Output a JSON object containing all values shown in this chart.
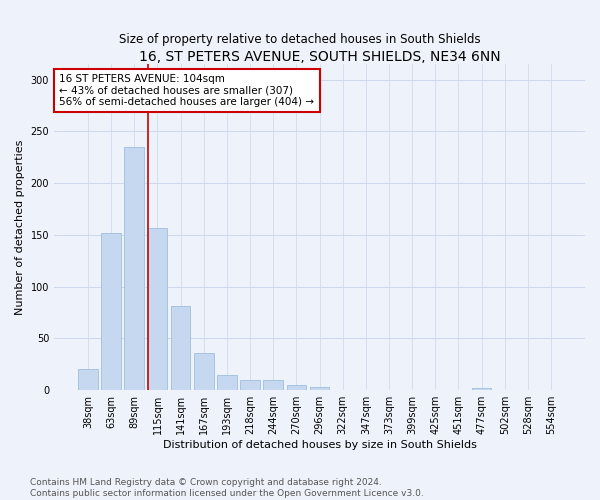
{
  "title": "16, ST PETERS AVENUE, SOUTH SHIELDS, NE34 6NN",
  "subtitle": "Size of property relative to detached houses in South Shields",
  "xlabel": "Distribution of detached houses by size in South Shields",
  "ylabel": "Number of detached properties",
  "bar_color": "#c5d8f0",
  "bar_edge_color": "#a0bedd",
  "background_color": "#eef2fa",
  "categories": [
    "38sqm",
    "63sqm",
    "89sqm",
    "115sqm",
    "141sqm",
    "167sqm",
    "193sqm",
    "218sqm",
    "244sqm",
    "270sqm",
    "296sqm",
    "322sqm",
    "347sqm",
    "373sqm",
    "399sqm",
    "425sqm",
    "451sqm",
    "477sqm",
    "502sqm",
    "528sqm",
    "554sqm"
  ],
  "values": [
    20,
    152,
    235,
    157,
    81,
    36,
    15,
    10,
    10,
    5,
    3,
    0,
    0,
    0,
    0,
    0,
    0,
    2,
    0,
    0,
    0
  ],
  "ylim": [
    0,
    315
  ],
  "yticks": [
    0,
    50,
    100,
    150,
    200,
    250,
    300
  ],
  "red_line_x": 2.58,
  "annotation_text": "16 ST PETERS AVENUE: 104sqm\n← 43% of detached houses are smaller (307)\n56% of semi-detached houses are larger (404) →",
  "annotation_box_color": "#ffffff",
  "annotation_box_edge_color": "#cc0000",
  "footer_line1": "Contains HM Land Registry data © Crown copyright and database right 2024.",
  "footer_line2": "Contains public sector information licensed under the Open Government Licence v3.0.",
  "grid_color": "#ccd8ec",
  "title_fontsize": 10,
  "subtitle_fontsize": 8.5,
  "xlabel_fontsize": 8,
  "ylabel_fontsize": 8,
  "tick_fontsize": 7,
  "annotation_fontsize": 7.5,
  "footer_fontsize": 6.5
}
